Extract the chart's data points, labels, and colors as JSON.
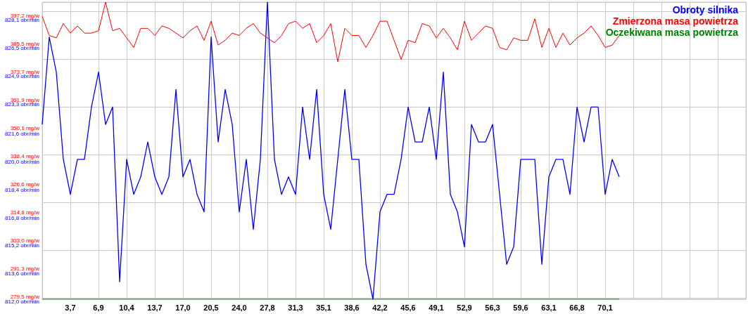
{
  "chart_data": {
    "type": "line",
    "categories": [
      null,
      null,
      null,
      null,
      "3,7",
      null,
      null,
      null,
      "6,9",
      null,
      null,
      null,
      "10,4",
      null,
      null,
      null,
      "13,7",
      null,
      null,
      null,
      "17,0",
      null,
      null,
      null,
      "20,5",
      null,
      null,
      null,
      "24,0",
      null,
      null,
      null,
      "27,8",
      null,
      null,
      null,
      "31,3",
      null,
      null,
      null,
      "35,1",
      null,
      null,
      null,
      "38,6",
      null,
      null,
      null,
      "42,2",
      null,
      null,
      null,
      "45,6",
      null,
      null,
      null,
      "49,1",
      null,
      null,
      null,
      "52,9",
      null,
      null,
      null,
      "56,3",
      null,
      null,
      null,
      "59,6",
      null,
      null,
      null,
      "63,1",
      null,
      null,
      null,
      "66,8",
      null,
      null,
      null,
      "70,1",
      null,
      null,
      null,
      null,
      null,
      null,
      null,
      null,
      null,
      null,
      null,
      null,
      null,
      null,
      null,
      null,
      null,
      null,
      null,
      null
    ],
    "series": [
      {
        "name": "Obroty silnika",
        "color": "#0000ff",
        "axis": "y2",
        "values": [
          822,
          827,
          825,
          820,
          818,
          820,
          820,
          823,
          825,
          822,
          823,
          813,
          820,
          818,
          819,
          821,
          819,
          818,
          819,
          824,
          819,
          820,
          818,
          817,
          827,
          821,
          824,
          822,
          817,
          820,
          816,
          820,
          829,
          820,
          818,
          819,
          818,
          823,
          820,
          824,
          818,
          816,
          820,
          824,
          820,
          820,
          814,
          812,
          817,
          818,
          818,
          820,
          823,
          821,
          821,
          823,
          820,
          825,
          818,
          817,
          815,
          822,
          821,
          821,
          822,
          818,
          814,
          815,
          820,
          820,
          820,
          814,
          819,
          820,
          820,
          818,
          823,
          821,
          823,
          823,
          818,
          820,
          819,
          null,
          null,
          null,
          null,
          null,
          null,
          null,
          null,
          null,
          null,
          null,
          null,
          null,
          null,
          null,
          null,
          null,
          null
        ]
      },
      {
        "name": "Zmierzona masa powietrza",
        "color": "#ff0000",
        "values": [
          398,
          390,
          389,
          395,
          391,
          394,
          391,
          391,
          392,
          404,
          392,
          393,
          389,
          385,
          393,
          393,
          390,
          394,
          393,
          391,
          389,
          392,
          394,
          388,
          396,
          386,
          388,
          391,
          390,
          393,
          395,
          391,
          389,
          387,
          390,
          395,
          396,
          393,
          395,
          387,
          390,
          395,
          379,
          393,
          390,
          390,
          385,
          390,
          396,
          396,
          388,
          380,
          388,
          387,
          395,
          394,
          389,
          393,
          389,
          384,
          396,
          388,
          391,
          394,
          393,
          385,
          384,
          389,
          388,
          388,
          397,
          385,
          393,
          385,
          391,
          386,
          389,
          391,
          394,
          390,
          385,
          386,
          390,
          null,
          null,
          null,
          null,
          null,
          null,
          null,
          null,
          null,
          null,
          null,
          null,
          null,
          null,
          null,
          null,
          null,
          null
        ]
      },
      {
        "name": "Oczekiwana masa powietrza",
        "color": "#008000",
        "values": [
          279.5,
          279.5,
          279.5,
          279.5,
          279.5,
          279.5,
          279.5,
          279.5,
          279.5,
          279.5,
          279.5,
          279.5,
          279.5,
          279.5,
          279.5,
          279.5,
          279.5,
          279.5,
          279.5,
          279.5,
          279.5,
          279.5,
          279.5,
          279.5,
          279.5,
          279.5,
          279.5,
          279.5,
          279.5,
          279.5,
          279.5,
          279.5,
          279.5,
          279.5,
          279.5,
          279.5,
          279.5,
          279.5,
          279.5,
          279.5,
          279.5,
          279.5,
          279.5,
          279.5,
          279.5,
          279.5,
          279.5,
          279.5,
          279.5,
          279.5,
          279.5,
          279.5,
          279.5,
          279.5,
          279.5,
          279.5,
          279.5,
          279.5,
          279.5,
          279.5,
          279.5,
          279.5,
          279.5,
          279.5,
          279.5,
          279.5,
          279.5,
          279.5,
          279.5,
          279.5,
          279.5,
          279.5,
          279.5,
          279.5,
          279.5,
          279.5,
          279.5,
          279.5,
          279.5,
          279.5,
          279.5,
          279.5,
          279.5,
          null,
          null,
          null,
          null,
          null,
          null,
          null,
          null,
          null,
          null,
          null,
          null,
          null,
          null,
          null,
          null,
          null,
          null
        ]
      }
    ],
    "ylim": [
      279.5,
      404.0
    ],
    "yticks": [
      {
        "value": 279.5,
        "label": "279,5 mg/w"
      },
      {
        "value": 291.3,
        "label": "291,3 mg/w"
      },
      {
        "value": 303.0,
        "label": "303,0 mg/w"
      },
      {
        "value": 314.8,
        "label": "314,8 mg/w"
      },
      {
        "value": 326.6,
        "label": "326,6 mg/w"
      },
      {
        "value": 338.4,
        "label": "338,4 mg/w"
      },
      {
        "value": 350.1,
        "label": "350,1 mg/w"
      },
      {
        "value": 361.9,
        "label": "361,9 mg/w"
      },
      {
        "value": 373.7,
        "label": "373,7 mg/w"
      },
      {
        "value": 385.5,
        "label": "385,5 mg/w"
      },
      {
        "value": 397.2,
        "label": "397,2 mg/w"
      }
    ],
    "y2lim": [
      812.0,
      829.0
    ],
    "y2ticks": [
      {
        "value": 812.0,
        "label": "812,0 obr/min"
      },
      {
        "value": 813.6,
        "label": "813,6 obr/min"
      },
      {
        "value": 815.2,
        "label": "815,2 obr/min"
      },
      {
        "value": 816.8,
        "label": "816,8 obr/min"
      },
      {
        "value": 818.4,
        "label": "818,4 obr/min"
      },
      {
        "value": 820.0,
        "label": "820,0 obr/min"
      },
      {
        "value": 821.6,
        "label": "821,6 obr/min"
      },
      {
        "value": 823.3,
        "label": "823,3 obr/min"
      },
      {
        "value": 824.9,
        "label": "824,9 obr/min"
      },
      {
        "value": 826.5,
        "label": "826,5 obr/min"
      },
      {
        "value": 828.1,
        "label": "828,1 obr/min"
      }
    ],
    "grid": true,
    "legend": "top right"
  }
}
